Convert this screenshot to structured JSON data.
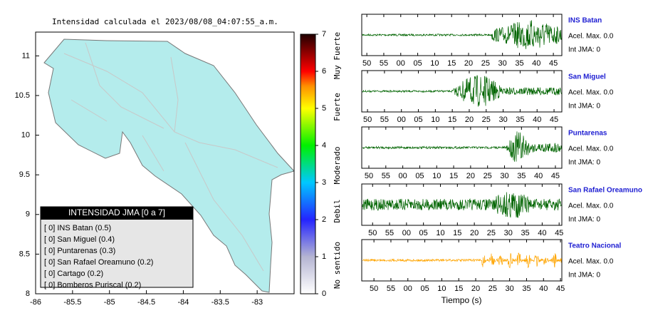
{
  "map": {
    "title": "Intensidad calculada el 2023/08/08_04:07:55_a.m.",
    "xlim": [
      -86,
      -82.5
    ],
    "xticks": [
      -86,
      -85.5,
      -85,
      -84.5,
      -84,
      -83.5,
      -83
    ],
    "ylim": [
      8,
      11.3
    ],
    "yticks": [
      8,
      8.5,
      9,
      9.5,
      10,
      10.5,
      11
    ],
    "colorbar": {
      "lim": [
        0,
        7
      ],
      "ticks": [
        0,
        1,
        2,
        3,
        4,
        5,
        6,
        7
      ],
      "labels": [
        "No sentido",
        "Debil",
        "Moderado",
        "Fuerte",
        "Muy Fuerte"
      ]
    },
    "legend": {
      "title": "INTENSIDAD JMA [0 a 7]",
      "entries": [
        "[ 0]  INS Batan (0.5)",
        "[ 0]  San Miguel (0.4)",
        "[ 0]  Puntarenas (0.3)",
        "[ 0]  San Rafael Oreamuno (0.2)",
        "[ 0]  Cartago (0.2)",
        "[ 0]  Bomberos Puriscal (0.2)"
      ]
    }
  },
  "seismograms": {
    "xlabel": "Tiempo (s)",
    "xticks": [
      {
        "value": -10,
        "label": "50"
      },
      {
        "value": -5,
        "label": "55"
      },
      {
        "value": 0,
        "label": "00"
      },
      {
        "value": 5,
        "label": "05"
      },
      10,
      15,
      20,
      25,
      30,
      35,
      40,
      45
    ],
    "stations": [
      {
        "name": "INS Batan",
        "color": "#006400",
        "accel": "Acel. Max. 0.0",
        "jma": "Int JMA: 0",
        "xlim": [
          -11.5,
          47.5
        ]
      },
      {
        "name": "San Miguel",
        "color": "#006400",
        "accel": "Acel. Max. 0.0",
        "jma": "Int JMA: 0",
        "xlim": [
          -11.7,
          47.3
        ]
      },
      {
        "name": "Puntarenas",
        "color": "#006400",
        "accel": "Acel. Max. 0.0",
        "jma": "Int JMA: 0",
        "xlim": [
          -12.1,
          46.9
        ]
      },
      {
        "name": "San Rafael Oreamuno",
        "color": "#006400",
        "accel": "Acel. Max. 0.0",
        "jma": "Int JMA: 0",
        "xlim": [
          -13.2,
          45.8
        ]
      },
      {
        "name": "Teatro Nacional",
        "color": "#ffa500",
        "accel": "Acel. Max. 0.0",
        "jma": "Int JMA: 0",
        "xlim": [
          -13.6,
          45.4
        ]
      }
    ]
  }
}
